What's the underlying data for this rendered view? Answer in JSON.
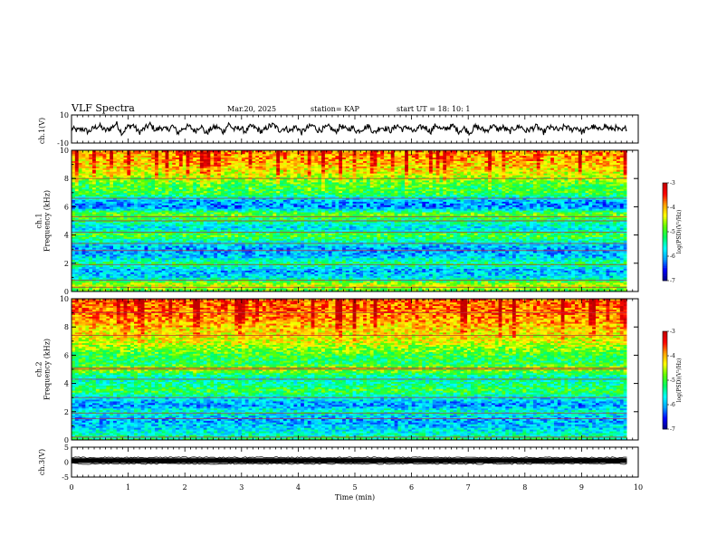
{
  "header": {
    "title": "VLF Spectra",
    "date": "Mar.20, 2025",
    "station": "station= KAP",
    "start": "start  UT  =   18: 10: 1"
  },
  "chart_data": [
    {
      "type": "line",
      "panel": "ch1-waveform",
      "ylabel": "ch.1(V)",
      "ylim": [
        -10,
        10
      ],
      "yticklabels": [
        "10",
        "-10"
      ],
      "xlim": [
        0,
        10
      ],
      "x_end": 9.8,
      "series": [
        {
          "values": [
            0.5,
            -1.0,
            0.2,
            -2.1,
            0.8,
            2.3,
            -1.2,
            0.4,
            4.0,
            -3.0,
            1.5,
            2.8,
            -2.5,
            0.3,
            3.2,
            -1.0,
            1.2,
            -0.8,
            2.2,
            -2.8,
            0.9,
            1.8,
            -1.5,
            2.5,
            -3.2,
            0.6,
            1.4,
            -2.0,
            3.5,
            -0.5,
            1.0,
            -1.8,
            2.0,
            0.2,
            -2.2,
            1.6,
            2.9,
            -0.9,
            0.7,
            -1.4,
            1.9,
            -2.6,
            0.8,
            2.6,
            -1.1,
            0.3,
            1.7,
            -2.3,
            2.4,
            -0.6,
            1.1,
            -1.7,
            0.5,
            2.1,
            -2.9,
            1.3,
            0.4,
            -1.2,
            2.7,
            -0.3,
            1.6,
            -2.4,
            0.9,
            1.5,
            -1.9,
            3.0,
            -0.7,
            0.8,
            2.2,
            -1.6,
            0.6,
            -2.7,
            1.8,
            0.1,
            -1.3,
            2.5,
            -0.4,
            1.2,
            -2.1,
            0.7,
            2.0,
            -1.5,
            0.2,
            1.9,
            -2.8,
            1.0,
            0.5,
            -1.1,
            2.3,
            -0.8,
            1.4,
            -2.2,
            0.3,
            1.7,
            -1.0,
            2.6,
            -0.2,
            0.9,
            -1.8,
            1.3
          ]
        }
      ]
    },
    {
      "type": "heatmap",
      "panel": "ch1-spectrogram",
      "ylabel": "ch.1\nFrequency (kHz)",
      "ylim": [
        0,
        10
      ],
      "yticklabels": [
        "0",
        "2",
        "4",
        "6",
        "8",
        "10"
      ],
      "xlim": [
        0,
        10
      ],
      "x_end": 9.8,
      "colorbar": {
        "range": [
          -7,
          -3
        ],
        "ticklabels": [
          "-3",
          "-4",
          "-5",
          "-6",
          "-7"
        ],
        "label": "log(PSD)(V²/Hz)"
      },
      "frequency_profile_kHz_to_logPSD": [
        [
          0.0,
          -5.0
        ],
        [
          0.5,
          -4.4
        ],
        [
          1.0,
          -5.8
        ],
        [
          1.5,
          -6.0
        ],
        [
          2.0,
          -5.2
        ],
        [
          2.5,
          -5.9
        ],
        [
          3.0,
          -6.1
        ],
        [
          3.5,
          -5.6
        ],
        [
          4.0,
          -4.9
        ],
        [
          4.5,
          -5.8
        ],
        [
          5.0,
          -5.3
        ],
        [
          5.5,
          -4.8
        ],
        [
          6.0,
          -6.2
        ],
        [
          6.5,
          -5.9
        ],
        [
          7.0,
          -5.0
        ],
        [
          7.5,
          -5.1
        ],
        [
          8.0,
          -4.7
        ],
        [
          8.5,
          -4.4
        ],
        [
          9.0,
          -4.2
        ],
        [
          10.0,
          -4.0
        ]
      ],
      "narrowband_lines_kHz": [
        0.3,
        0.8,
        1.9,
        2.9,
        3.4,
        4.2,
        5.0,
        5.3,
        6.6,
        8.0
      ]
    },
    {
      "type": "heatmap",
      "panel": "ch2-spectrogram",
      "ylabel": "ch.2\nFrequency (kHz)",
      "ylim": [
        0,
        10
      ],
      "yticklabels": [
        "0",
        "2",
        "4",
        "6",
        "8",
        "10"
      ],
      "xlim": [
        0,
        10
      ],
      "x_end": 9.8,
      "colorbar": {
        "range": [
          -7,
          -3
        ],
        "ticklabels": [
          "-3",
          "-4",
          "-5",
          "-6",
          "-7"
        ],
        "label": "log(PSD)(V²/Hz)"
      },
      "frequency_profile_kHz_to_logPSD": [
        [
          0.0,
          -5.2
        ],
        [
          0.5,
          -5.6
        ],
        [
          1.0,
          -5.9
        ],
        [
          1.5,
          -6.0
        ],
        [
          2.0,
          -5.5
        ],
        [
          2.5,
          -6.1
        ],
        [
          3.0,
          -5.7
        ],
        [
          3.5,
          -5.0
        ],
        [
          4.0,
          -5.4
        ],
        [
          4.5,
          -5.5
        ],
        [
          5.0,
          -4.6
        ],
        [
          5.5,
          -5.2
        ],
        [
          6.0,
          -5.0
        ],
        [
          6.5,
          -4.7
        ],
        [
          7.0,
          -4.4
        ],
        [
          7.5,
          -4.3
        ],
        [
          8.0,
          -4.2
        ],
        [
          8.5,
          -4.0
        ],
        [
          9.0,
          -3.9
        ],
        [
          10.0,
          -3.8
        ]
      ],
      "narrowband_lines_kHz": [
        0.2,
        1.5,
        1.9,
        3.0,
        4.3,
        5.0,
        5.1,
        7.4,
        9.0
      ]
    },
    {
      "type": "line",
      "panel": "ch3-waveform",
      "ylabel": "ch.3(V)",
      "ylim": [
        -5,
        5
      ],
      "yticklabels": [
        "5",
        "0",
        "-5"
      ],
      "xlim": [
        0,
        10
      ],
      "x_end": 9.8,
      "series": [
        {
          "values": [
            1.0,
            0.2,
            -0.4
          ],
          "description_band": [
            -0.3,
            1.3
          ]
        }
      ]
    }
  ],
  "xaxis": {
    "label": "Time (min)",
    "ticks": [
      0,
      1,
      2,
      3,
      4,
      5,
      6,
      7,
      8,
      9,
      10
    ],
    "ticklabels": [
      "0",
      "1",
      "2",
      "3",
      "4",
      "5",
      "6",
      "7",
      "8",
      "9",
      "10"
    ]
  },
  "colormap": [
    "#000080",
    "#0000ff",
    "#00a0ff",
    "#00ffff",
    "#00ff60",
    "#60ff00",
    "#ffff00",
    "#ffa000",
    "#ff0000",
    "#c00000",
    "#ffffff"
  ]
}
